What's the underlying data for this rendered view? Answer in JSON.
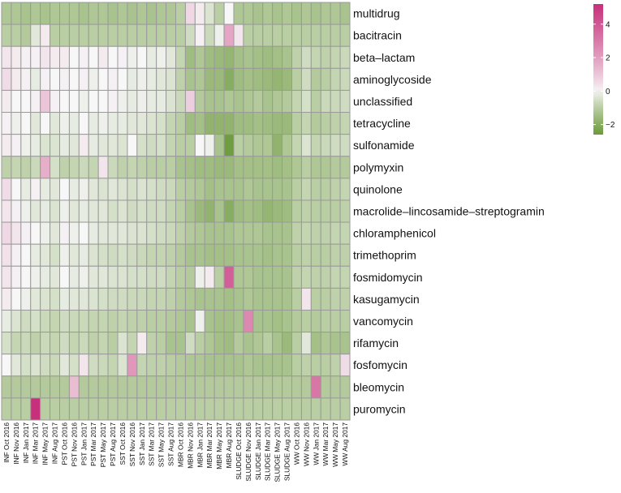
{
  "chart_data": {
    "type": "heatmap",
    "title": "",
    "rows": [
      "multidrug",
      "bacitracin",
      "beta-lactam",
      "aminoglycoside",
      "unclassified",
      "tetracycline",
      "sulfonamide",
      "polymyxin",
      "quinolone",
      "macrolide-lincosamide-streptogramin",
      "chloramphenicol",
      "trimethoprim",
      "fosmidomycin",
      "kasugamycin",
      "vancomycin",
      "rifamycin",
      "fosfomycin",
      "bleomycin",
      "puromycin"
    ],
    "columns": [
      "INF Oct 2016",
      "INF Nov 2016",
      "INF Jan 2017",
      "INF Mar 2017",
      "INF May 2017",
      "INF Aug 2017",
      "PST Oct 2016",
      "PST Nov 2016",
      "PST Jan 2017",
      "PST Mar 2017",
      "PST May 2017",
      "PST Aug 2017",
      "SST Oct 2016",
      "SST Nov 2016",
      "SST Jan 2017",
      "SST Mar 2017",
      "SST May 2017",
      "SST Aug 2017",
      "MBR Oct 2016",
      "MBR Nov 2016",
      "MBR Jan 2017",
      "MBR Mar 2017",
      "MBR May 2017",
      "MBR Aug 2017",
      "SLUDGE Oct 2016",
      "SLUDGE Nov 2016",
      "SLUDGE Jan 2017",
      "SLUDGE Mar 2017",
      "SLUDGE May 2017",
      "SLUDGE Aug 2017",
      "WW Oct 2016",
      "WW Nov 2016",
      "WW Jan 2017",
      "WW Mar 2017",
      "WW May 2017",
      "WW Aug 2017"
    ],
    "values": [
      [
        -1.2,
        -1.2,
        -1.3,
        -1.2,
        -1.3,
        -1.2,
        -1.2,
        -1.2,
        -1.3,
        -1.2,
        -1.2,
        -1.3,
        -1.2,
        -1.3,
        -1.2,
        -1.3,
        -1.2,
        -1.2,
        -1.0,
        0.6,
        0.2,
        -0.4,
        -1.0,
        0.0,
        -1.2,
        -1.2,
        -1.3,
        -1.2,
        -1.3,
        -1.2,
        -1.3,
        -1.2,
        -1.3,
        -1.2,
        -1.2,
        -1.3
      ],
      [
        -1.0,
        -1.0,
        -1.1,
        -0.3,
        0.2,
        -1.0,
        -1.0,
        -1.0,
        -1.0,
        -1.0,
        -1.0,
        -1.0,
        -1.0,
        -1.0,
        -1.0,
        -1.0,
        -1.0,
        -1.0,
        -1.0,
        -0.6,
        0.1,
        -0.7,
        -0.1,
        1.8,
        0.3,
        -1.0,
        -1.0,
        -1.0,
        -1.0,
        -1.0,
        -1.0,
        -1.0,
        -1.0,
        -1.0,
        -1.0,
        -1.0
      ],
      [
        0.3,
        0.2,
        0.1,
        0.1,
        0.3,
        0.2,
        0.2,
        0.0,
        0.1,
        0.0,
        0.2,
        0.0,
        0.1,
        -0.1,
        0.0,
        -0.2,
        -0.1,
        -0.3,
        -0.8,
        -1.5,
        -1.2,
        -1.5,
        -1.6,
        -1.7,
        -1.4,
        -1.3,
        -1.4,
        -1.5,
        -1.4,
        -1.3,
        -0.9,
        -0.6,
        -0.8,
        -0.9,
        -0.8,
        -0.7
      ],
      [
        0.5,
        0.2,
        0.1,
        -0.2,
        0.1,
        0.0,
        0.1,
        0.0,
        0.1,
        -0.1,
        0.0,
        0.1,
        0.0,
        -0.2,
        -0.1,
        -0.2,
        -0.3,
        -0.4,
        -0.9,
        -1.3,
        -1.2,
        -1.6,
        -1.6,
        -2.0,
        -1.5,
        -1.4,
        -1.5,
        -1.6,
        -1.7,
        -1.6,
        -1.0,
        -0.6,
        -1.1,
        -1.0,
        -0.8,
        -0.7
      ],
      [
        0.2,
        0.0,
        0.0,
        0.1,
        1.0,
        0.1,
        0.0,
        0.0,
        -0.1,
        0.0,
        0.0,
        0.1,
        -0.1,
        -0.2,
        -0.1,
        -0.2,
        -0.2,
        -0.4,
        -0.7,
        0.8,
        -1.1,
        -1.3,
        -1.3,
        -1.2,
        -1.3,
        -1.2,
        -1.1,
        -1.3,
        -1.2,
        -1.1,
        -0.8,
        -0.5,
        -1.0,
        -0.7,
        -0.7,
        -0.6
      ],
      [
        0.1,
        -0.1,
        0.0,
        -0.3,
        0.0,
        -0.3,
        -0.1,
        -0.2,
        0.0,
        -0.2,
        -0.1,
        -0.2,
        -0.2,
        -0.3,
        -0.3,
        -0.4,
        -0.5,
        -0.8,
        -1.0,
        -1.5,
        -1.4,
        -1.8,
        -1.8,
        -1.8,
        -1.5,
        -1.5,
        -1.4,
        -1.5,
        -1.6,
        -1.6,
        -1.0,
        -0.8,
        -1.1,
        -1.0,
        -0.9,
        -0.8
      ],
      [
        0.2,
        0.1,
        -0.1,
        -0.2,
        -0.4,
        -0.4,
        -0.2,
        -0.3,
        0.2,
        -0.2,
        -0.3,
        -0.3,
        -0.4,
        0.0,
        -0.5,
        -0.6,
        -0.5,
        -0.8,
        -1.0,
        -1.0,
        0.0,
        -0.1,
        -1.3,
        -2.5,
        -1.0,
        -1.1,
        -1.2,
        -1.2,
        -1.8,
        -1.2,
        -0.8,
        -0.4,
        -0.8,
        -0.7,
        -0.6,
        -0.6
      ],
      [
        -0.9,
        -0.8,
        -0.9,
        -0.7,
        1.6,
        -0.5,
        -0.9,
        -0.8,
        -0.7,
        -0.8,
        0.3,
        -0.7,
        -0.9,
        -0.8,
        -0.9,
        -1.0,
        -1.0,
        -1.0,
        -1.3,
        -1.4,
        -1.5,
        -1.5,
        -1.6,
        -1.6,
        -1.4,
        -1.4,
        -1.4,
        -1.4,
        -1.5,
        -1.4,
        -1.2,
        -1.0,
        -1.2,
        -1.2,
        -1.1,
        -1.1
      ],
      [
        0.5,
        0.0,
        -0.2,
        0.1,
        -0.2,
        -0.3,
        0.0,
        -0.2,
        -0.1,
        -0.3,
        -0.4,
        -0.3,
        -0.4,
        -0.5,
        -0.4,
        -0.5,
        -0.6,
        -0.7,
        -1.0,
        -1.1,
        -1.2,
        -1.4,
        -1.3,
        -1.3,
        -1.3,
        -1.2,
        -1.3,
        -1.3,
        -1.3,
        -1.3,
        -1.0,
        -0.8,
        -1.0,
        -1.0,
        -0.9,
        -0.8
      ],
      [
        0.3,
        0.1,
        -0.1,
        -0.3,
        -0.2,
        -0.4,
        -0.1,
        -0.3,
        -0.2,
        -0.3,
        -0.3,
        -0.5,
        -0.4,
        -0.6,
        -0.5,
        -0.6,
        -0.6,
        -0.8,
        -1.0,
        -1.3,
        -1.6,
        -1.8,
        -1.3,
        -2.0,
        -1.5,
        -1.4,
        -1.5,
        -1.7,
        -1.6,
        -1.5,
        -1.0,
        -0.9,
        -1.0,
        -1.0,
        -1.0,
        -0.9
      ],
      [
        0.6,
        0.3,
        0.1,
        0.0,
        -0.1,
        -0.3,
        0.1,
        -0.1,
        0.0,
        -0.2,
        -0.3,
        -0.3,
        -0.3,
        -0.4,
        -0.4,
        -0.5,
        -0.6,
        -0.7,
        -0.9,
        -1.1,
        -1.2,
        -1.3,
        -1.3,
        -1.3,
        -1.2,
        -1.2,
        -1.2,
        -1.3,
        -1.3,
        -1.3,
        -0.9,
        -0.8,
        -0.9,
        -0.9,
        -0.8,
        -0.8
      ],
      [
        0.4,
        0.1,
        0.0,
        -0.2,
        -0.3,
        -0.5,
        -0.1,
        -0.3,
        -0.2,
        -0.4,
        -0.5,
        -0.6,
        -0.5,
        -0.6,
        -0.7,
        -0.8,
        -0.8,
        -0.9,
        -1.1,
        -1.3,
        -1.3,
        -1.4,
        -1.4,
        -1.4,
        -1.3,
        -1.3,
        -1.3,
        -1.4,
        -1.3,
        -1.3,
        -1.0,
        -0.9,
        -1.0,
        -1.0,
        -0.9,
        -0.9
      ],
      [
        0.3,
        0.1,
        0.0,
        -0.1,
        -0.2,
        -0.3,
        0.0,
        -0.2,
        -0.1,
        -0.3,
        -0.3,
        -0.4,
        -0.4,
        -0.5,
        -0.5,
        -0.6,
        -0.6,
        -0.8,
        -1.0,
        -1.1,
        -0.1,
        0.2,
        -1.0,
        3.8,
        -1.2,
        -1.2,
        -1.3,
        -1.3,
        -1.3,
        -1.3,
        -0.9,
        -0.8,
        -0.9,
        -0.9,
        -0.8,
        -0.8
      ],
      [
        0.2,
        0.0,
        -0.1,
        -0.3,
        -0.4,
        -0.5,
        -0.2,
        -0.3,
        -0.3,
        -0.4,
        -0.5,
        -0.6,
        -0.6,
        -0.7,
        -0.7,
        -0.8,
        -0.8,
        -0.9,
        -1.1,
        -1.2,
        -1.3,
        -1.3,
        -1.3,
        -1.4,
        -1.3,
        -1.2,
        -1.3,
        -1.3,
        -1.3,
        -1.3,
        -1.0,
        0.3,
        -1.0,
        -1.0,
        -0.9,
        -0.9
      ],
      [
        -0.2,
        -0.4,
        -0.6,
        -0.5,
        -0.7,
        -0.8,
        -0.6,
        -0.7,
        -0.7,
        -0.8,
        -0.8,
        -0.9,
        -0.8,
        -0.9,
        -0.9,
        -1.0,
        -1.0,
        -1.1,
        -1.2,
        -1.3,
        -0.1,
        -1.3,
        -1.4,
        -1.4,
        -1.3,
        2.6,
        -1.3,
        -1.3,
        -1.4,
        -1.3,
        -1.1,
        -1.0,
        -1.1,
        -1.0,
        -1.0,
        -1.0
      ],
      [
        -0.5,
        -0.8,
        -0.7,
        -0.9,
        -0.7,
        -0.8,
        -0.6,
        -0.8,
        -0.7,
        -0.9,
        -0.8,
        -1.0,
        -0.4,
        -0.8,
        0.2,
        -0.9,
        -1.0,
        -1.3,
        -1.3,
        -0.6,
        -1.0,
        -1.2,
        -1.4,
        -1.5,
        -1.1,
        -1.3,
        -1.2,
        -1.0,
        -1.3,
        -1.6,
        -1.0,
        -0.3,
        -1.4,
        -1.2,
        -1.3,
        -1.3
      ],
      [
        0.0,
        -0.3,
        -0.5,
        -0.4,
        -0.6,
        -0.7,
        -0.3,
        -0.5,
        0.3,
        -0.6,
        -0.7,
        -0.8,
        -0.4,
        2.2,
        -0.8,
        -0.9,
        -0.9,
        -1.0,
        -1.1,
        -1.2,
        -1.2,
        -1.3,
        -1.3,
        -1.3,
        -1.3,
        -1.2,
        -1.3,
        -1.3,
        -1.3,
        -1.3,
        -1.0,
        -0.9,
        -1.0,
        -1.0,
        -0.9,
        0.5
      ],
      [
        -1.1,
        -1.1,
        -1.1,
        -1.1,
        -1.1,
        -1.1,
        -1.1,
        1.2,
        -1.1,
        -1.1,
        -1.1,
        -1.1,
        -1.1,
        -1.1,
        -1.1,
        -1.1,
        -1.1,
        -1.1,
        -1.1,
        -1.1,
        -1.1,
        -1.1,
        -1.1,
        -1.1,
        -1.1,
        -1.1,
        -1.1,
        -1.1,
        -1.1,
        -1.1,
        -1.1,
        -1.1,
        3.1,
        -1.1,
        -1.1,
        -1.1
      ],
      [
        -1.0,
        -1.0,
        -1.0,
        5.2,
        -1.0,
        -1.0,
        -1.0,
        -1.0,
        -1.0,
        -1.0,
        -1.0,
        -1.0,
        -1.0,
        -1.0,
        -1.0,
        -1.0,
        -1.0,
        -1.0,
        -1.0,
        -1.0,
        -1.0,
        -1.0,
        -1.0,
        -1.0,
        -1.0,
        -1.0,
        -1.0,
        -1.0,
        -1.0,
        -1.0,
        -1.0,
        -1.0,
        -1.0,
        -1.0,
        -1.0,
        -1.0
      ]
    ],
    "color_scale": {
      "range": [
        -2.6,
        5.2
      ],
      "ticks": [
        -2,
        0,
        2,
        4
      ],
      "low_color": "#6b9a3a",
      "mid_color": "#f7f7f7",
      "high_color": "#c7307a"
    },
    "legend_position": "top-right",
    "grid": true
  }
}
